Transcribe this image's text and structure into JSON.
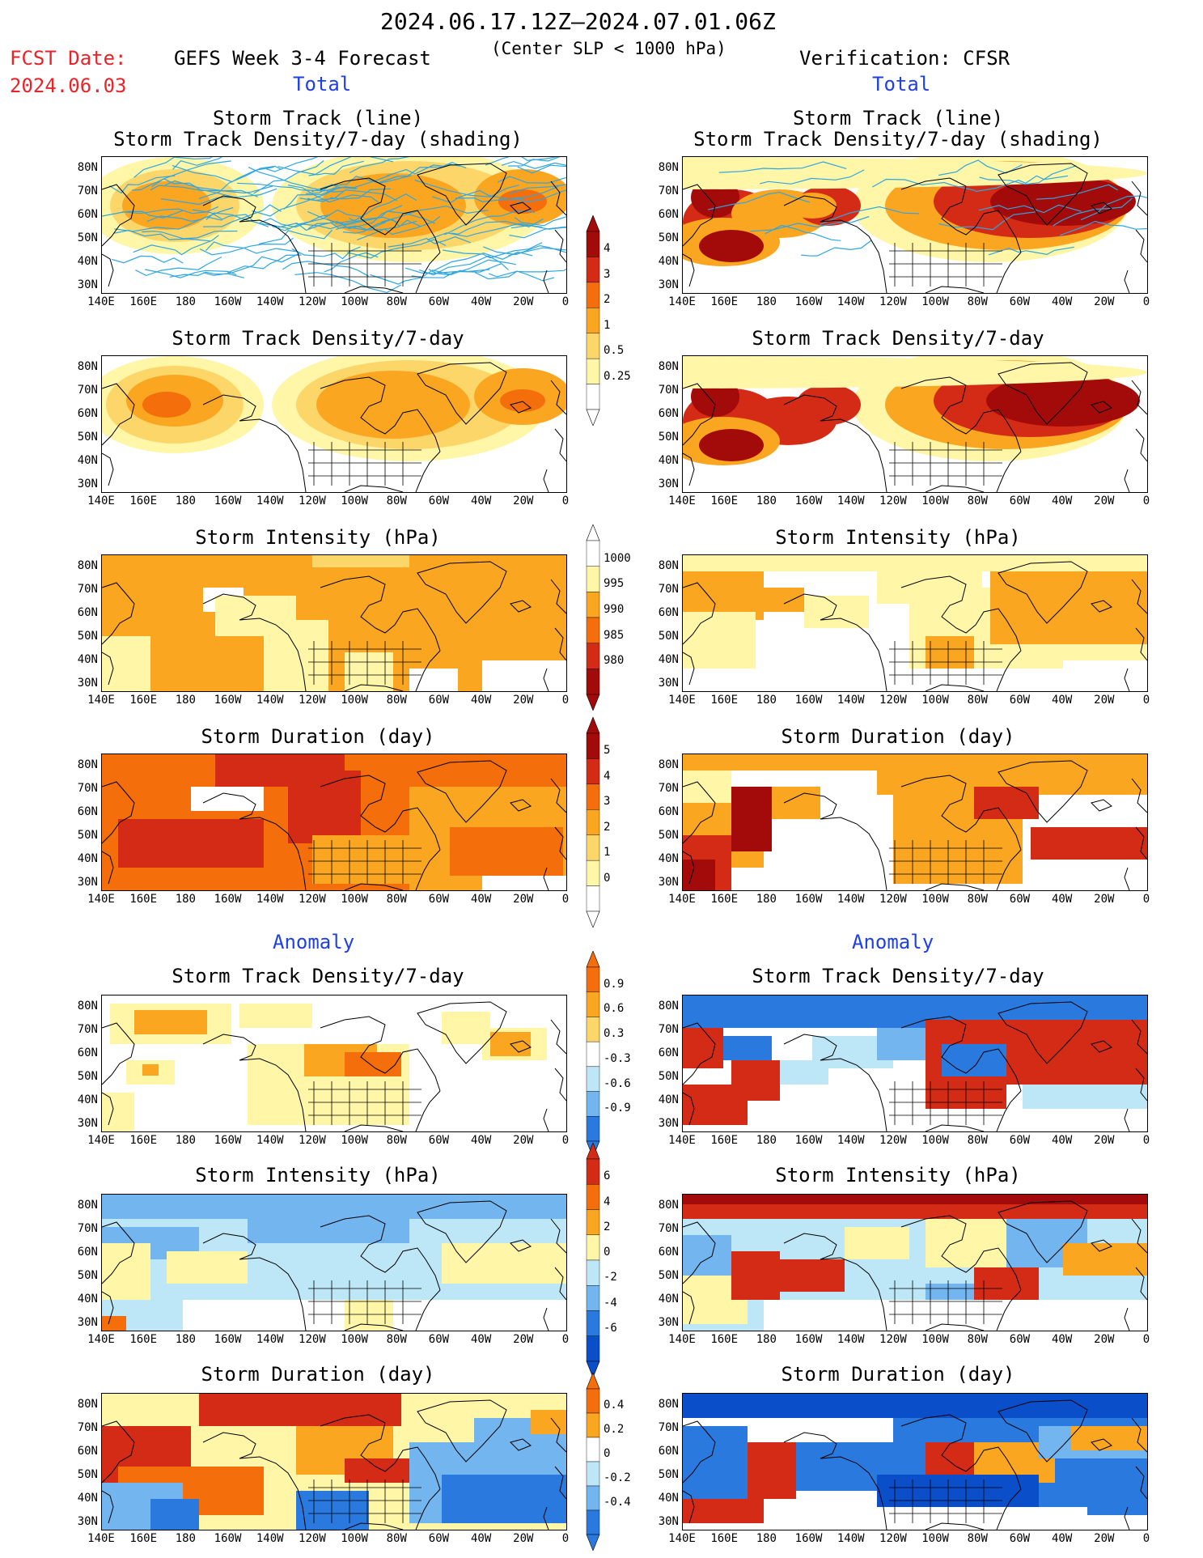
{
  "header": {
    "date_range": "2024.06.17.12Z–2024.07.01.06Z",
    "fcst_label": "FCST Date:",
    "fcst_date": "2024.06.03",
    "left_title": "GEFS Week 3-4 Forecast",
    "center_subtitle": "(Center SLP < 1000 hPa)",
    "right_title": "Verification: CFSR",
    "total_label": "Total",
    "anomaly_label": "Anomaly"
  },
  "panel_titles": {
    "track_line": "Storm Track (line)",
    "track_density_shading": "Storm Track Density/7-day (shading)",
    "track_density": "Storm Track Density/7-day",
    "intensity": "Storm Intensity (hPa)",
    "duration": "Storm Duration (day)"
  },
  "axes": {
    "lat_labels": [
      "80N",
      "70N",
      "60N",
      "50N",
      "40N",
      "30N"
    ],
    "lon_labels": [
      "140E",
      "160E",
      "180",
      "160W",
      "140W",
      "120W",
      "100W",
      "80W",
      "60W",
      "40W",
      "20W",
      "0"
    ]
  },
  "colorbars": {
    "density_total": [
      "4",
      "3",
      "2",
      "1",
      "0.5",
      "0.25"
    ],
    "intensity_total": [
      "1000",
      "995",
      "990",
      "985",
      "980"
    ],
    "duration_total": [
      "5",
      "4",
      "3",
      "2",
      "1",
      "0"
    ],
    "density_anom": [
      "0.9",
      "0.6",
      "0.3",
      "-0.3",
      "-0.6",
      "-0.9"
    ],
    "intensity_anom": [
      "6",
      "4",
      "2",
      "0",
      "-2",
      "-4",
      "-6"
    ],
    "duration_anom": [
      "0.4",
      "0.2",
      "0",
      "-0.2",
      "-0.4"
    ]
  },
  "colors": {
    "pale_yellow": "#fff6a8",
    "light_orange": "#fdd66a",
    "orange": "#fba621",
    "dark_orange": "#f46e0c",
    "red": "#d42b16",
    "dark_red": "#a30a0a",
    "light_blue": "#bde6f7",
    "mid_blue": "#72b5ef",
    "blue": "#2a79de",
    "dark_blue": "#0b4ec9",
    "track_line": "#2fa6e0"
  }
}
